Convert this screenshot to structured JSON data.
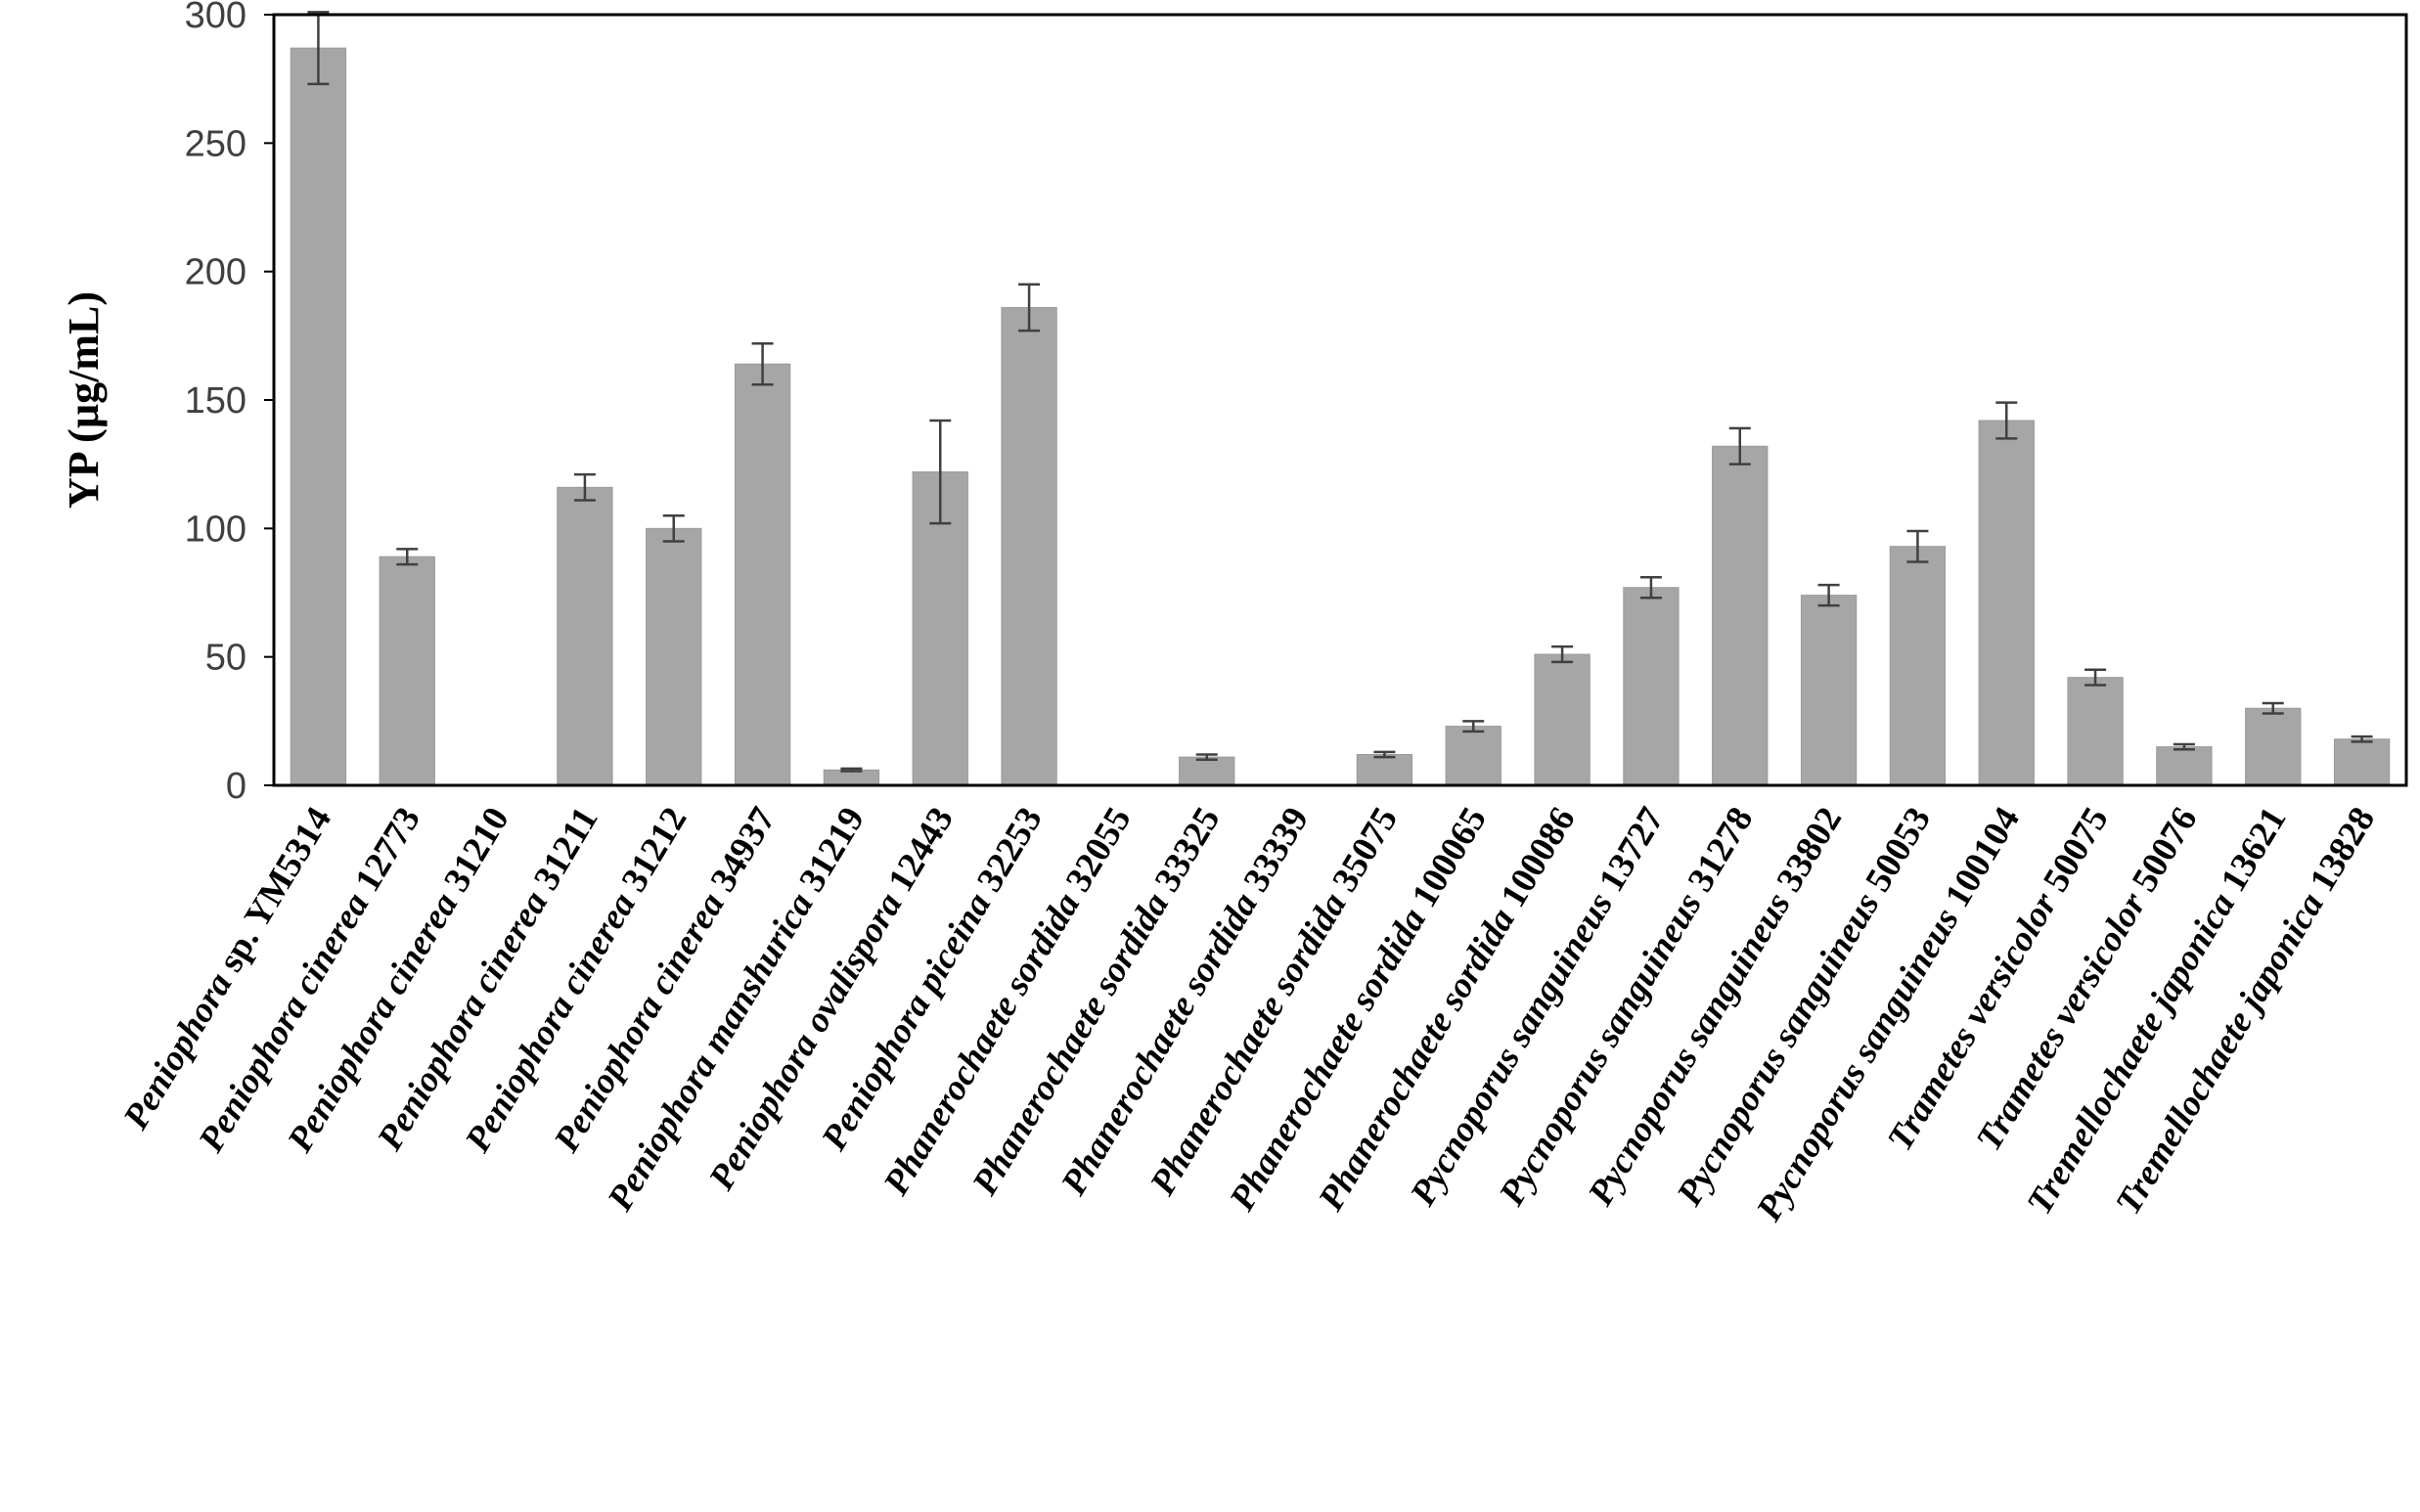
{
  "chart_data": {
    "type": "bar",
    "title": "",
    "xlabel": "",
    "ylabel": "YP (µg/mL)",
    "ylim": [
      0,
      300
    ],
    "yticks": [
      "0",
      "50",
      "100",
      "150",
      "200",
      "250",
      "300"
    ],
    "grid": false,
    "legend": "none",
    "colors": {
      "bar": "#a6a6a6",
      "bar_edge": "#9a9a9a",
      "error_bar": "#404040",
      "frame": "#000000"
    },
    "categories": [
      [
        {
          "t": "Peniophora",
          "i": true
        },
        {
          "t": " sp. YM5314",
          "i": false
        }
      ],
      [
        {
          "t": "Peniophora cinerea",
          "i": true
        },
        {
          "t": " 12773",
          "i": false
        }
      ],
      [
        {
          "t": "Peniophora cinerea",
          "i": true
        },
        {
          "t": " 31210",
          "i": false
        }
      ],
      [
        {
          "t": "Peniophora cinerea",
          "i": true
        },
        {
          "t": " 31211",
          "i": false
        }
      ],
      [
        {
          "t": "Peniophora cinerea",
          "i": true
        },
        {
          "t": " 31212",
          "i": false
        }
      ],
      [
        {
          "t": "Peniophora cinerea",
          "i": true
        },
        {
          "t": " 34937",
          "i": false
        }
      ],
      [
        {
          "t": "Peniophora manshurica",
          "i": true
        },
        {
          "t": " 31219",
          "i": false
        }
      ],
      [
        {
          "t": "Peniophora ovalispora",
          "i": true
        },
        {
          "t": " 12443",
          "i": false
        }
      ],
      [
        {
          "t": "Peniophora piceina",
          "i": true
        },
        {
          "t": " 32253",
          "i": false
        }
      ],
      [
        {
          "t": "Phanerochaete sordida",
          "i": true
        },
        {
          "t": " 32055",
          "i": false
        }
      ],
      [
        {
          "t": "Phanerochaete sordida",
          "i": true
        },
        {
          "t": " 33325",
          "i": false
        }
      ],
      [
        {
          "t": "Phanerochaete sordida",
          "i": true
        },
        {
          "t": " 33339",
          "i": false
        }
      ],
      [
        {
          "t": "Phanerochaete sordida",
          "i": true
        },
        {
          "t": " 35075",
          "i": false
        }
      ],
      [
        {
          "t": "Phanerochaete sordida",
          "i": true
        },
        {
          "t": " 100065",
          "i": false
        }
      ],
      [
        {
          "t": "Phanerochaete sordida",
          "i": true
        },
        {
          "t": " 100086",
          "i": false
        }
      ],
      [
        {
          "t": "Pycnoporus sanguineus",
          "i": true
        },
        {
          "t": " 13727",
          "i": false
        }
      ],
      [
        {
          "t": "Pycnoporus sanguineus",
          "i": true
        },
        {
          "t": " 31278",
          "i": false
        }
      ],
      [
        {
          "t": "Pycnoporus sanguineus",
          "i": true
        },
        {
          "t": " 33802",
          "i": false
        }
      ],
      [
        {
          "t": "Pycnoporus sanguineus",
          "i": true
        },
        {
          "t": " 50053",
          "i": false
        }
      ],
      [
        {
          "t": "Pycnoporus sanguineus",
          "i": true
        },
        {
          "t": " 100104",
          "i": false
        }
      ],
      [
        {
          "t": "Trametes versicolor",
          "i": true
        },
        {
          "t": " 50075",
          "i": false
        }
      ],
      [
        {
          "t": "Trametes versicolor",
          "i": true
        },
        {
          "t": " 50076",
          "i": false
        }
      ],
      [
        {
          "t": "Tremellochaete japonica",
          "i": true
        },
        {
          "t": " 13621",
          "i": false
        }
      ],
      [
        {
          "t": "Tremellochaete japonica",
          "i": true
        },
        {
          "t": " 13828",
          "i": false
        }
      ]
    ],
    "values": [
      287,
      89,
      0,
      116,
      100,
      164,
      6,
      122,
      186,
      0,
      11,
      0,
      12,
      23,
      51,
      77,
      132,
      74,
      93,
      142,
      42,
      15,
      30,
      18
    ],
    "errors": [
      14,
      3,
      0,
      5,
      5,
      8,
      0.5,
      20,
      9,
      0,
      1,
      0,
      1,
      2,
      3,
      4,
      7,
      4,
      6,
      7,
      3,
      1,
      2,
      1
    ]
  }
}
